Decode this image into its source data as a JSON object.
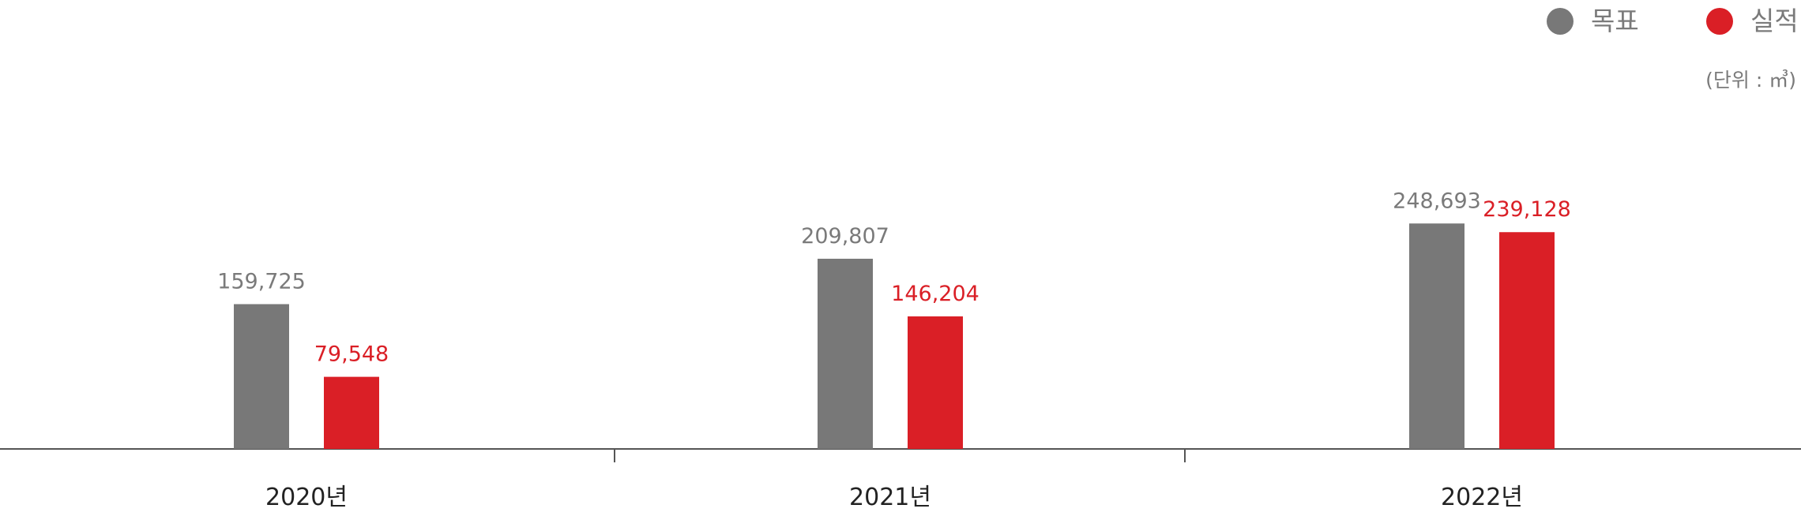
{
  "chart_data": {
    "type": "bar",
    "categories": [
      "2020년",
      "2021년",
      "2022년"
    ],
    "series": [
      {
        "name": "목표",
        "color": "#787878",
        "values": [
          159725,
          209807,
          248693
        ],
        "value_labels": [
          "159,725",
          "209,807",
          "248,693"
        ]
      },
      {
        "name": "실적",
        "color": "#da1f26",
        "values": [
          79548,
          146204,
          239128
        ],
        "value_labels": [
          "79,548",
          "146,204",
          "239,128"
        ]
      }
    ],
    "unit_label": "(단위 : ㎥)",
    "ylim": [
      0,
      300000
    ],
    "grid": false,
    "legend_position": "top-right",
    "label_colors": {
      "목표": "#7a7a7a",
      "실적": "#da1f26"
    }
  }
}
